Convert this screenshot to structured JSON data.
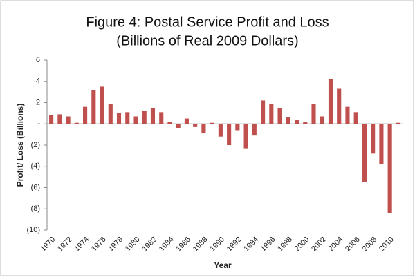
{
  "chart_data": {
    "type": "bar",
    "title": "Figure 4: Postal Service Profit and Loss",
    "subtitle": "(Billions of Real 2009 Dollars)",
    "x_label": "Year",
    "y_label": "Profit/ Loss (Billions)",
    "categories": [
      "1970",
      null,
      "1972",
      null,
      "1974",
      null,
      "1976",
      null,
      "1978",
      null,
      "1980",
      null,
      "1982",
      null,
      "1984",
      null,
      "1986",
      null,
      "1988",
      null,
      "1990",
      null,
      "1992",
      null,
      "1994",
      null,
      "1996",
      null,
      "1998",
      null,
      "2000",
      null,
      "2002",
      null,
      "2004",
      null,
      "2006",
      null,
      "2008",
      null,
      "2010",
      null
    ],
    "values": [
      0.8,
      0.9,
      0.7,
      0.1,
      1.6,
      3.2,
      3.5,
      1.9,
      1.0,
      1.1,
      0.7,
      1.2,
      1.5,
      1.1,
      0.2,
      -0.4,
      0.5,
      -0.3,
      -0.9,
      0.1,
      -1.2,
      -2.0,
      -0.6,
      -2.3,
      -1.1,
      2.2,
      1.9,
      1.5,
      0.6,
      0.4,
      0.2,
      1.9,
      0.7,
      4.2,
      3.3,
      1.6,
      1.1,
      -5.5,
      -2.8,
      -3.8,
      -8.4,
      0.1
    ],
    "color": "#c0504d",
    "ylim": [
      -10,
      6
    ],
    "yticks": [
      {
        "value": -10,
        "label": "(10)"
      },
      {
        "value": -8,
        "label": "(8)"
      },
      {
        "value": -6,
        "label": "(6)"
      },
      {
        "value": -4,
        "label": "(4)"
      },
      {
        "value": -2,
        "label": "(2)"
      },
      {
        "value": 0,
        "label": "-"
      },
      2,
      4,
      6
    ],
    "grid": false
  }
}
